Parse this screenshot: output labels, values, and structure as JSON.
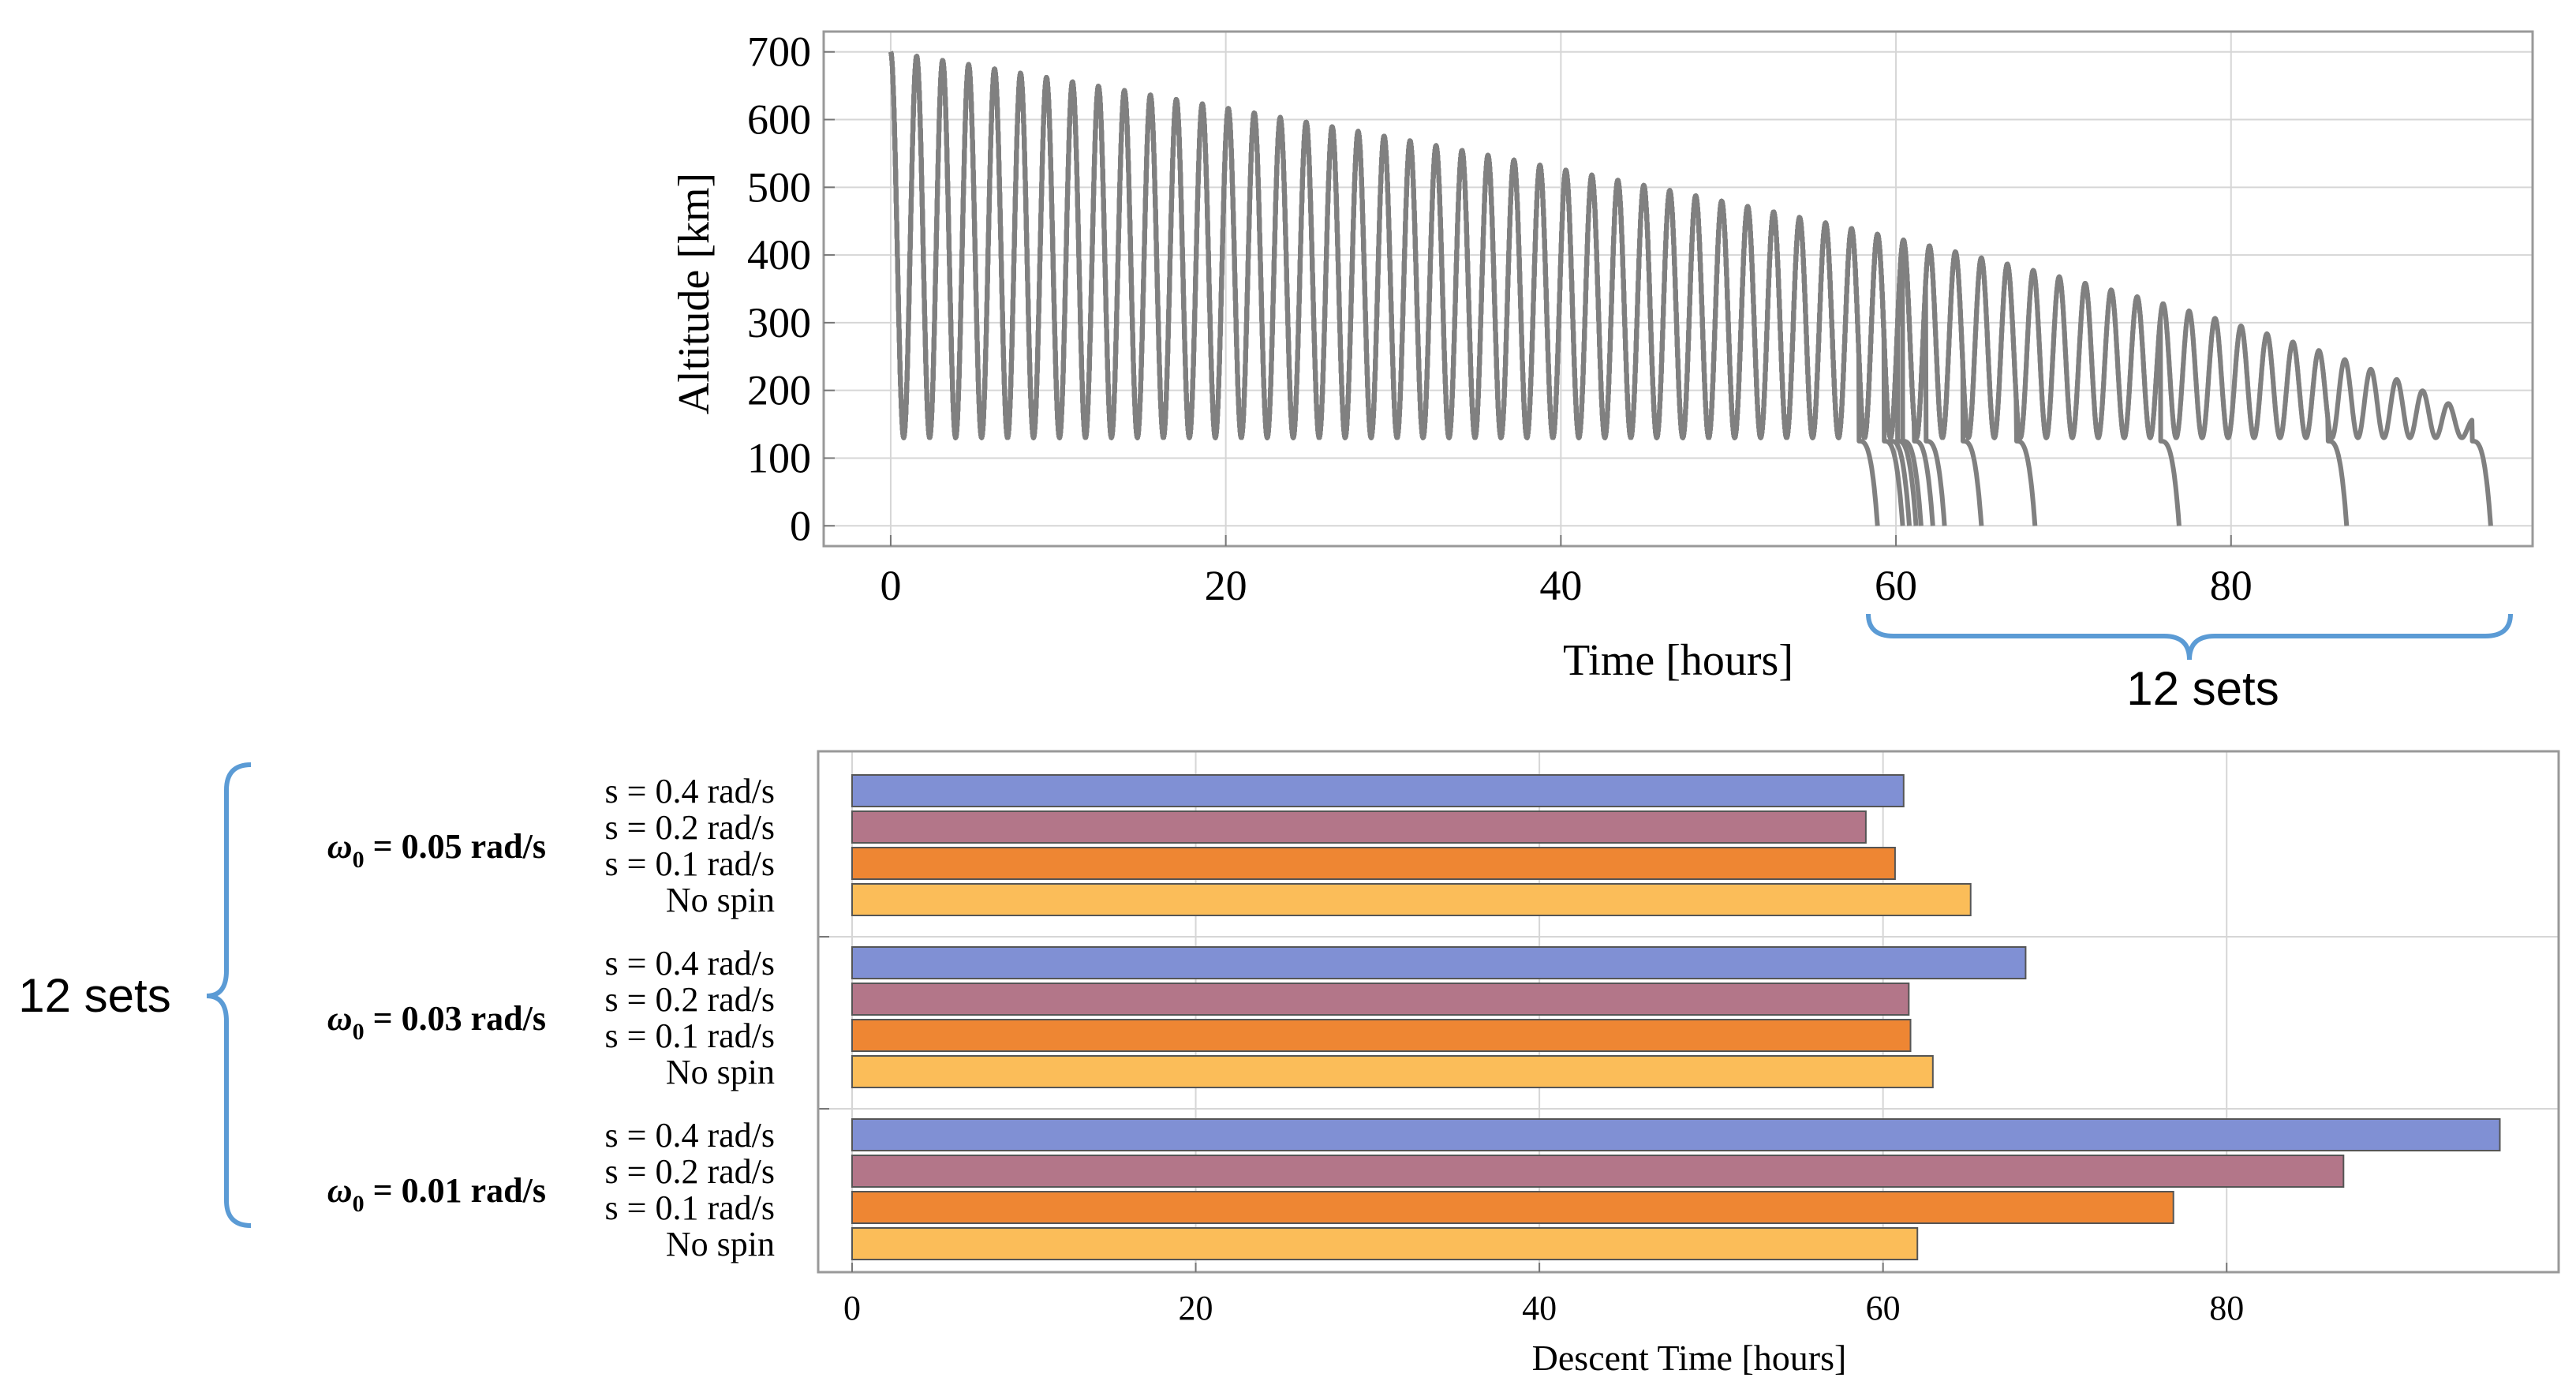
{
  "colors": {
    "line": "#808080",
    "grid": "#d6d6d6",
    "frame": "#999999",
    "brace": "#5b9bd5",
    "series": [
      "#8090d4",
      "#b37689",
      "#ee8633",
      "#fbbd59"
    ]
  },
  "chart_data": [
    {
      "type": "line",
      "xlabel": "Time [hours]",
      "ylabel": "Altitude [km]",
      "xlim": [
        -4,
        98
      ],
      "ylim": [
        -30,
        730
      ],
      "xticks": [
        "0",
        "20",
        "40",
        "60",
        "80"
      ],
      "yticks": [
        "0",
        "100",
        "200",
        "300",
        "400",
        "500",
        "600",
        "700"
      ],
      "grid": true,
      "orbit_period_hours": 1.55,
      "perigee_km": 130,
      "apogee_start_km": 700,
      "apogee_decay_exponent": 1.5,
      "envelope_end_hours": 95.5,
      "reentry_times_hours": [
        58.9,
        60.4,
        60.8,
        61.2,
        61.5,
        62.2,
        62.9,
        65.1,
        68.3,
        76.9,
        86.9,
        95.5
      ],
      "series_count": 12
    },
    {
      "type": "bar",
      "orientation": "horizontal",
      "xlabel": "Descent Time [hours]",
      "xlim": [
        0,
        97
      ],
      "xticks": [
        "0",
        "20",
        "40",
        "60",
        "80"
      ],
      "grid": true,
      "groups": [
        {
          "label": "ω",
          "sub": "0",
          "value_text": " = 0.05 rad/s",
          "bars": [
            {
              "label": "s = 0.4 rad/s",
              "value": 61.2
            },
            {
              "label": "s = 0.2 rad/s",
              "value": 59.0
            },
            {
              "label": "s = 0.1 rad/s",
              "value": 60.7
            },
            {
              "label": "No spin",
              "value": 65.1
            }
          ]
        },
        {
          "label": "ω",
          "sub": "0",
          "value_text": " = 0.03 rad/s",
          "bars": [
            {
              "label": "s = 0.4 rad/s",
              "value": 68.3
            },
            {
              "label": "s = 0.2 rad/s",
              "value": 61.5
            },
            {
              "label": "s = 0.1 rad/s",
              "value": 61.6
            },
            {
              "label": "No spin",
              "value": 62.9
            }
          ]
        },
        {
          "label": "ω",
          "sub": "0",
          "value_text": " = 0.01 rad/s",
          "bars": [
            {
              "label": "s = 0.4 rad/s",
              "value": 95.9
            },
            {
              "label": "s = 0.2 rad/s",
              "value": 86.8
            },
            {
              "label": "s = 0.1 rad/s",
              "value": 76.9
            },
            {
              "label": "No spin",
              "value": 62.0
            }
          ]
        }
      ]
    }
  ],
  "annotations": {
    "right_brace_label": "12 sets",
    "left_brace_label": "12 sets"
  }
}
